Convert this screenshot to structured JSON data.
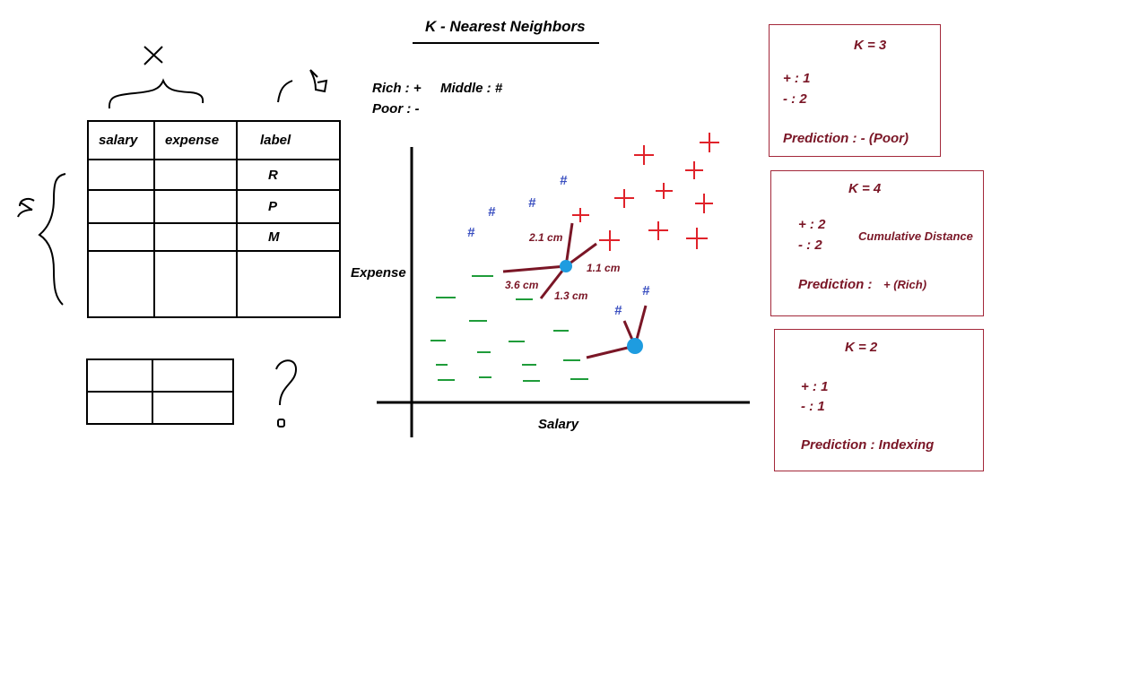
{
  "title": "K - Nearest Neighbors",
  "legend": {
    "rich": "Rich : +",
    "middle": "Middle : #",
    "poor": "Poor : -"
  },
  "annotations": {
    "x_symbol": "X",
    "y_symbol": "y",
    "m_symbol": "m",
    "question_mark": "?"
  },
  "table": {
    "headers": [
      "salary",
      "expense",
      "label"
    ],
    "labels": [
      "R",
      "P",
      "M"
    ]
  },
  "axes": {
    "x_label": "Salary",
    "y_label": "Expense"
  },
  "distances": {
    "d1": "2.1 cm",
    "d2": "1.1 cm",
    "d3": "3.6 cm",
    "d4": "1.3 cm"
  },
  "boxes": {
    "k3": {
      "title": "K = 3",
      "plus": "+ : 1",
      "minus": "- : 2",
      "prediction": "Prediction : - (Poor)"
    },
    "k4": {
      "title": "K = 4",
      "plus": "+ : 2",
      "minus": "- : 2",
      "note": "Cumulative Distance",
      "prediction_label": "Prediction :",
      "prediction_value": "+ (Rich)"
    },
    "k2": {
      "title": "K = 2",
      "plus": "+ : 1",
      "minus": "- : 1",
      "prediction": "Prediction : Indexing"
    }
  },
  "colors": {
    "rich": "#e0222a",
    "middle": "#3a4fc0",
    "poor": "#1f9c3a",
    "query_point": "#1e9ce0",
    "distance_line": "#7a1626",
    "box_border": "#a3283a"
  }
}
